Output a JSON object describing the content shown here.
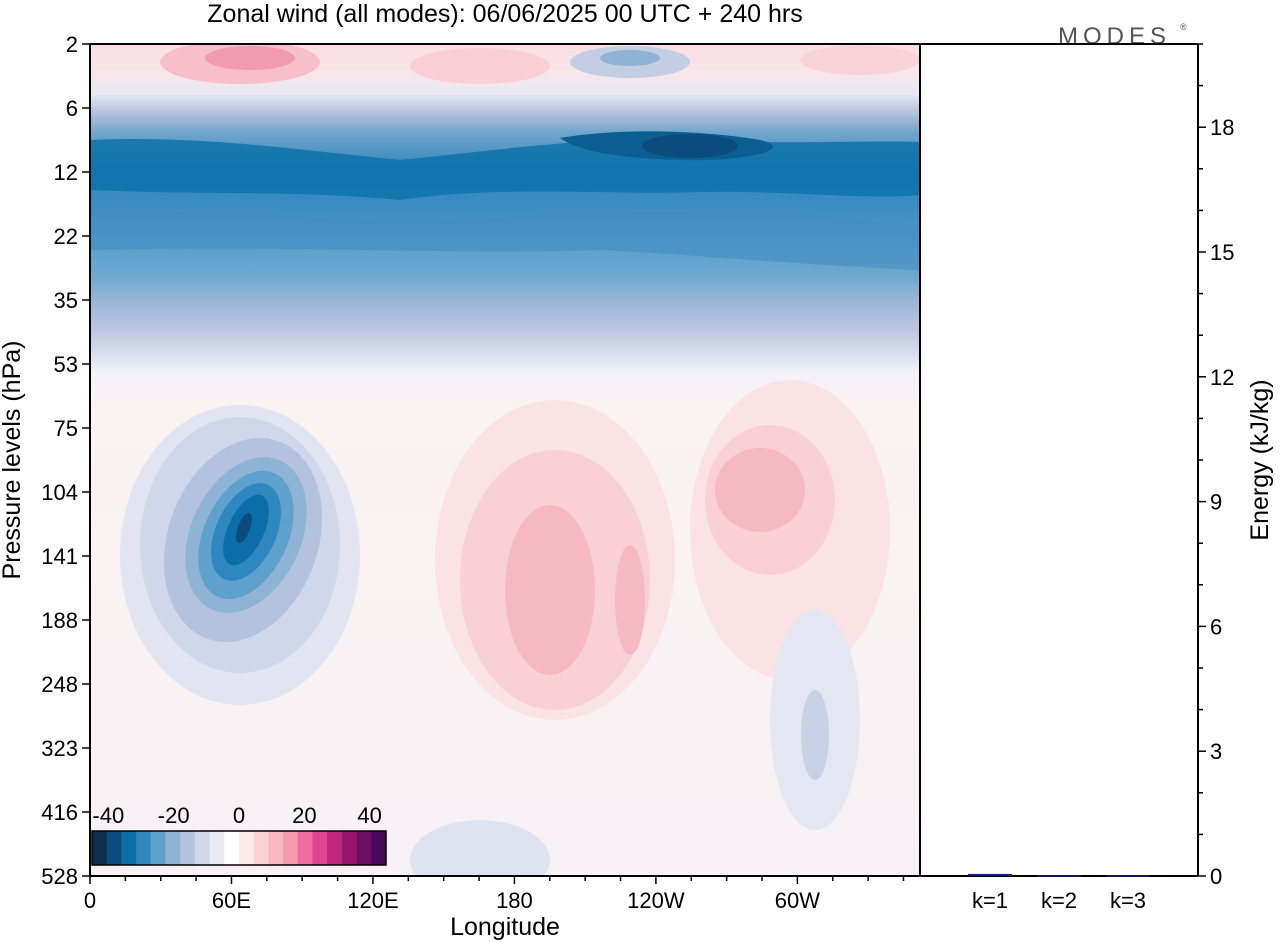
{
  "chart_data": [
    {
      "type": "heatmap",
      "title": "Zonal wind (all modes):  06/06/2025  00 UTC  + 240 hrs",
      "xlabel": "Longitude",
      "ylabel": "Pressure levels (hPa)",
      "x_ticks": [
        "0",
        "60E",
        "120E",
        "180",
        "120W",
        "60W"
      ],
      "y_ticks": [
        "2",
        "6",
        "12",
        "22",
        "35",
        "53",
        "75",
        "104",
        "141",
        "188",
        "248",
        "323",
        "416",
        "528"
      ],
      "x_range_deg": [
        0,
        352
      ],
      "colorbar": {
        "ticks": [
          "-40",
          "-20",
          "0",
          "20",
          "40"
        ],
        "range": [
          -45,
          45
        ],
        "colors": [
          "#0b2e4d",
          "#0a4c7d",
          "#0b6ea8",
          "#2f87c0",
          "#5ea1cc",
          "#8fb3d4",
          "#b3c3df",
          "#d0d7ea",
          "#e8ebf5",
          "#ffffff",
          "#fde9ea",
          "#fbd3d6",
          "#f7b8c0",
          "#f39aae",
          "#ee6ca0",
          "#e0458f",
          "#c0257e",
          "#97156f",
          "#6b0e64",
          "#4a0a5b"
        ]
      },
      "wind_features": [
        {
          "label": "upper-level easterly belt",
          "lon": [
            0,
            352
          ],
          "level": [
            6,
            30
          ],
          "value": -26
        },
        {
          "label": "easterly jet core",
          "lon": [
            236,
            275
          ],
          "level": [
            9,
            11
          ],
          "value": -38
        },
        {
          "label": "stratospheric westerly patch",
          "lon": [
            45,
            85
          ],
          "level": [
            2,
            4
          ],
          "value": 14
        },
        {
          "label": "easterly core 60E",
          "lon": [
            57,
            70
          ],
          "level": [
            110,
            160
          ],
          "value": -36
        },
        {
          "label": "westerly region 180",
          "lon": [
            178,
            215
          ],
          "level": [
            100,
            250
          ],
          "value": 12
        },
        {
          "label": "westerly region 75W",
          "lon": [
            264,
            303
          ],
          "level": [
            95,
            150
          ],
          "value": 12
        },
        {
          "label": "easterly region 85W",
          "lon": [
            300,
            312
          ],
          "level": [
            250,
            360
          ],
          "value": -12
        }
      ]
    },
    {
      "type": "bar",
      "ylabel": "Energy (kJ/kg)",
      "categories": [
        "k=1",
        "k=2",
        "k=3"
      ],
      "values": [
        0.05,
        0.02,
        0.02
      ],
      "ylim": [
        0,
        20
      ],
      "y_ticks": [
        "0",
        "3",
        "6",
        "9",
        "12",
        "15",
        "18"
      ],
      "bar_color": "#1a1a7a"
    }
  ],
  "logo": "MODES",
  "logo_mark": "®"
}
